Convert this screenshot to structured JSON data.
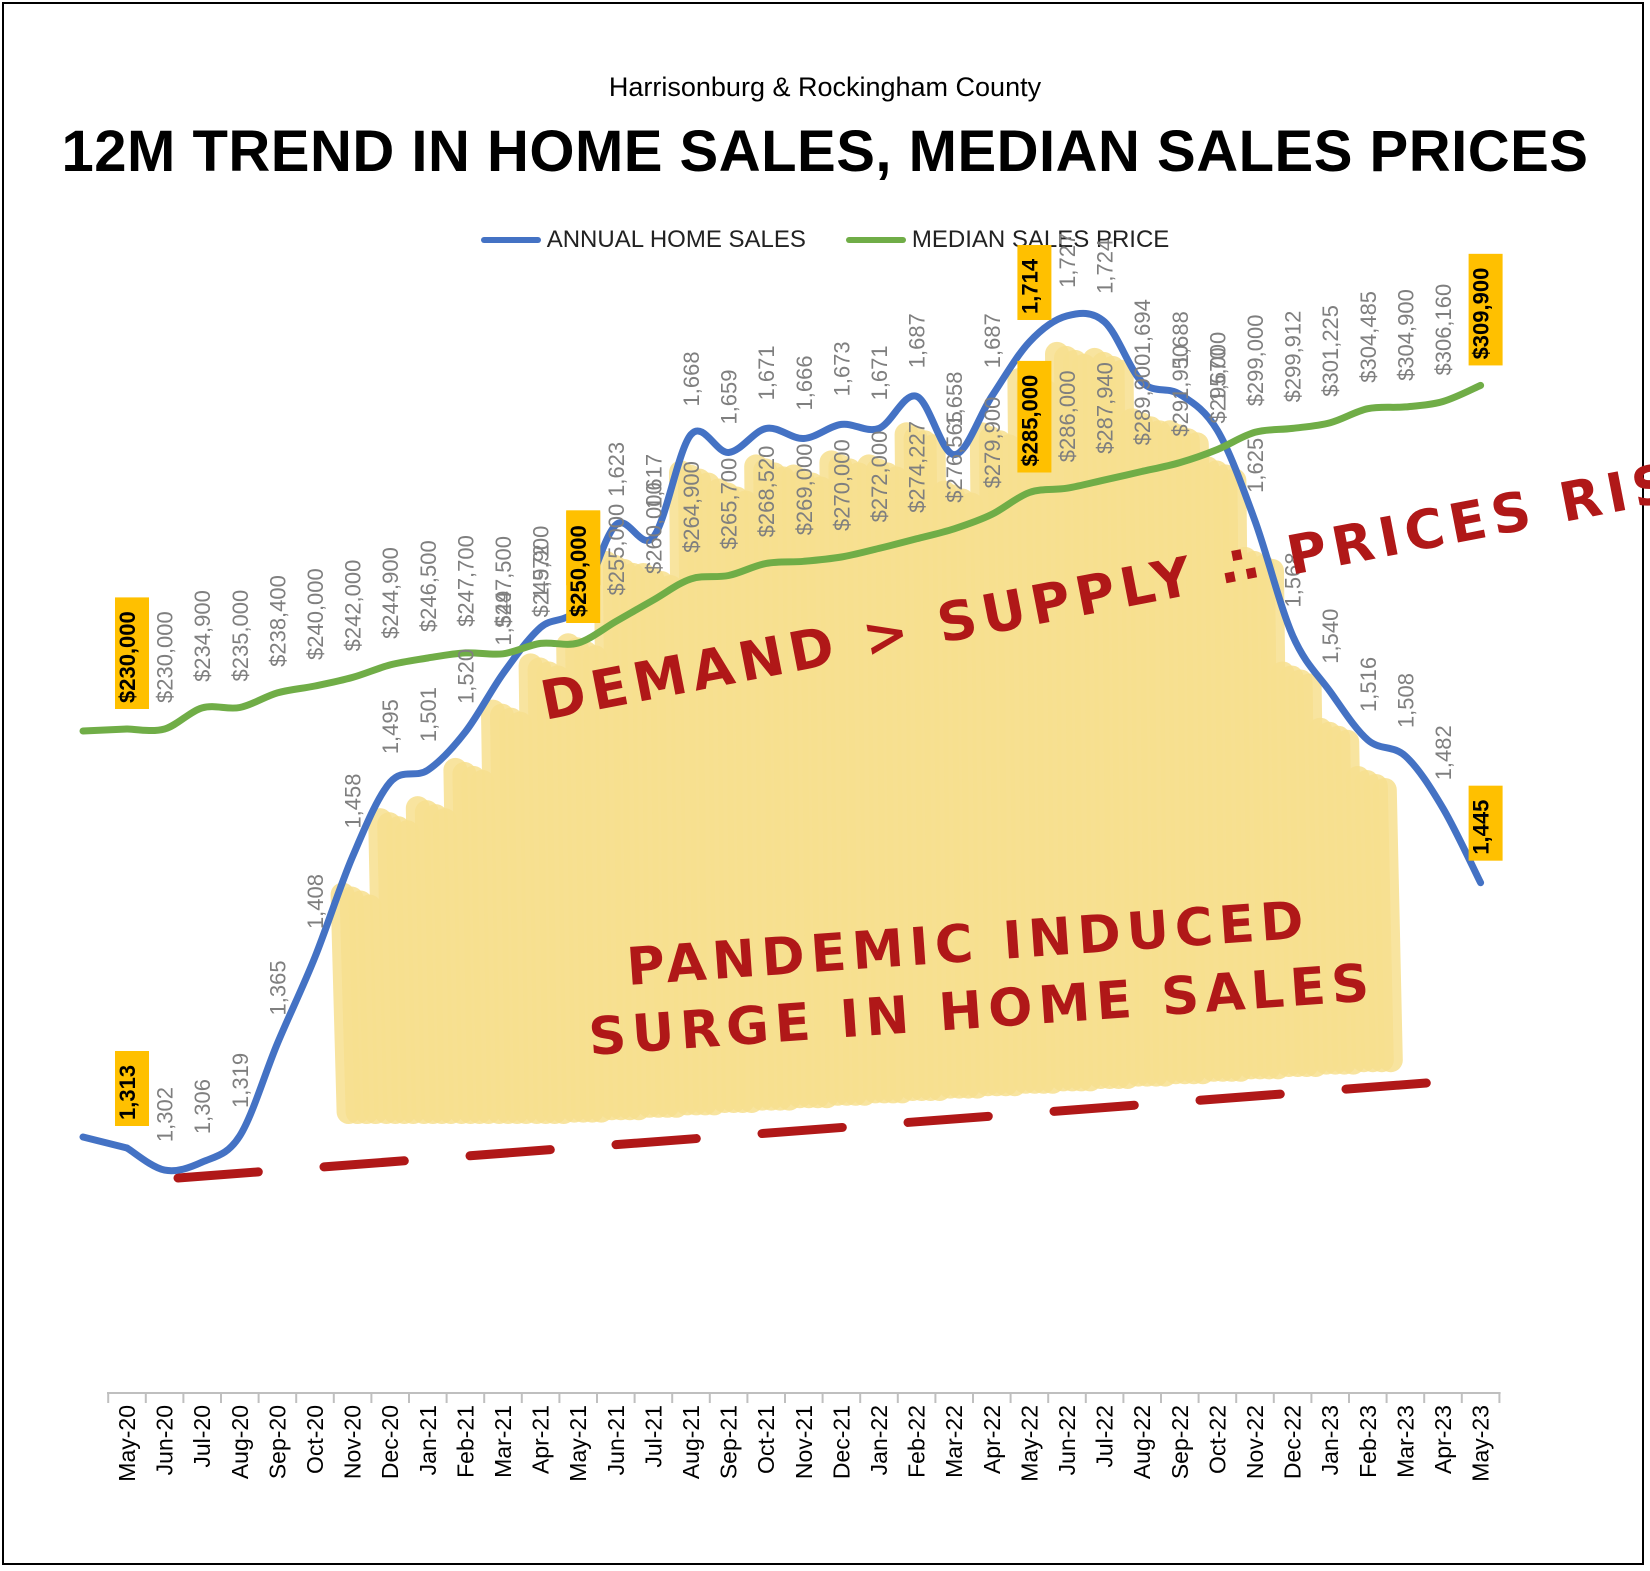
{
  "header": {
    "subtitle": "Harrisonburg & Rockingham County",
    "title": "12M TREND IN HOME SALES, MEDIAN SALES PRICES"
  },
  "colors": {
    "sales_line": "#4472C4",
    "price_line": "#70AD47",
    "highlight": "#FFC000",
    "annotation": "#B01818",
    "shading": "#F7E08F",
    "label_gray": "#7F7F7F"
  },
  "annotations": {
    "top": "DEMAND > SUPPLY ∴ PRICES RISE",
    "middle_line1": "PANDEMIC INDUCED",
    "middle_line2": "SURGE IN HOME SALES"
  },
  "chart_data": {
    "type": "line",
    "title": "12M TREND IN HOME SALES, MEDIAN SALES PRICES",
    "legend_position": "top",
    "categories": [
      "May-20",
      "Jun-20",
      "Jul-20",
      "Aug-20",
      "Sep-20",
      "Oct-20",
      "Nov-20",
      "Dec-20",
      "Jan-21",
      "Feb-21",
      "Mar-21",
      "Apr-21",
      "May-21",
      "Jun-21",
      "Jul-21",
      "Aug-21",
      "Sep-21",
      "Oct-21",
      "Nov-21",
      "Dec-21",
      "Jan-22",
      "Feb-22",
      "Mar-22",
      "Apr-22",
      "May-22",
      "Jun-22",
      "Jul-22",
      "Aug-22",
      "Sep-22",
      "Oct-22",
      "Nov-22",
      "Dec-22",
      "Jan-23",
      "Feb-23",
      "Mar-23",
      "Apr-23",
      "May-23"
    ],
    "highlighted_points": [
      "May-20",
      "May-21",
      "May-22",
      "May-23"
    ],
    "series": [
      {
        "name": "ANNUAL HOME SALES",
        "values": [
          1313,
          1302,
          1306,
          1319,
          1365,
          1408,
          1458,
          1495,
          1501,
          1520,
          1549,
          1572,
          1582,
          1623,
          1617,
          1668,
          1659,
          1671,
          1666,
          1673,
          1671,
          1687,
          1658,
          1687,
          1714,
          1727,
          1724,
          1694,
          1688,
          1670,
          1625,
          1568,
          1540,
          1516,
          1508,
          1482,
          1445
        ],
        "labels": [
          "1,313",
          "1,302",
          "1,306",
          "1,319",
          "1,365",
          "1,408",
          "1,458",
          "1,495",
          "1,501",
          "1,520",
          "1,549",
          "1,572",
          "1,582",
          "1,623",
          "1,617",
          "1,668",
          "1,659",
          "1,671",
          "1,666",
          "1,673",
          "1,671",
          "1,687",
          "1,658",
          "1,687",
          "1,714",
          "1,727",
          "1,724",
          "1,694",
          "1,688",
          "1,670",
          "1,625",
          "1,568",
          "1,540",
          "1,516",
          "1,508",
          "1,482",
          "1,445"
        ]
      },
      {
        "name": "MEDIAN SALES PRICE",
        "values": [
          230000,
          230000,
          234900,
          235000,
          238400,
          240000,
          242000,
          244900,
          246500,
          247700,
          247500,
          249900,
          250000,
          255000,
          260000,
          264900,
          265700,
          268520,
          269000,
          270000,
          272000,
          274227,
          276565,
          279900,
          285000,
          286000,
          287940,
          289900,
          291950,
          295000,
          299000,
          299912,
          301225,
          304485,
          304900,
          306160,
          309900
        ],
        "labels": [
          "$230,000",
          "$230,000",
          "$234,900",
          "$235,000",
          "$238,400",
          "$240,000",
          "$242,000",
          "$244,900",
          "$246,500",
          "$247,700",
          "$247,500",
          "$249,900",
          "$250,000",
          "$255,000",
          "$260,000",
          "$264,900",
          "$265,700",
          "$268,520",
          "$269,000",
          "$270,000",
          "$272,000",
          "$274,227",
          "$276,565",
          "$279,900",
          "$285,000",
          "$286,000",
          "$287,940",
          "$289,900",
          "$291,950",
          "$295,000",
          "$299,000",
          "$299,912",
          "$301,225",
          "$304,485",
          "$304,900",
          "$306,160",
          "$309,900"
        ]
      }
    ]
  }
}
